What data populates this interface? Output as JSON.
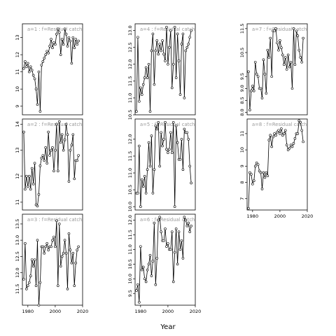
{
  "figure": {
    "xlabel": "Year",
    "line_color": "#000000",
    "title_color": "#999999",
    "background": "#ffffff"
  },
  "chart_data": [
    {
      "type": "line",
      "title": "a=1 : f=Residual catch",
      "x": [
        1977,
        1978,
        1979,
        1980,
        1981,
        1982,
        1983,
        1984,
        1985,
        1986,
        1987,
        1988,
        1989,
        1990,
        1991,
        1992,
        1993,
        1994,
        1995,
        1996,
        1997,
        1998,
        1999,
        2000,
        2001,
        2002,
        2003,
        2004,
        2005,
        2006,
        2007,
        2008,
        2009,
        2010,
        2011,
        2012,
        2013,
        2014,
        2015,
        2016,
        2017
      ],
      "y": [
        11.2,
        11.6,
        11.3,
        11.5,
        11.0,
        11.3,
        11.1,
        10.8,
        10.6,
        10.0,
        9.1,
        11.0,
        8.7,
        11.4,
        11.6,
        11.8,
        12.0,
        12.2,
        12.1,
        12.5,
        12.9,
        12.4,
        12.7,
        12.6,
        13.2,
        13.5,
        13.3,
        12.0,
        12.9,
        12.6,
        13.5,
        13.2,
        12.5,
        13.0,
        12.8,
        11.5,
        13.0,
        12.4,
        12.9,
        12.6,
        12.8
      ],
      "ylim": [
        8.5,
        13.8
      ],
      "yticks": [
        9,
        10,
        11,
        12,
        13
      ],
      "xticks": [
        1980,
        2000,
        2020
      ],
      "show_xticks": false,
      "show_yticks": true
    },
    {
      "type": "line",
      "title": "a=2 : f=Residual catch",
      "x": [
        1977,
        1978,
        1979,
        1980,
        1981,
        1982,
        1983,
        1984,
        1985,
        1986,
        1987,
        1988,
        1989,
        1990,
        1991,
        1992,
        1993,
        1994,
        1995,
        1996,
        1997,
        1998,
        1999,
        2000,
        2001,
        2002,
        2003,
        2004,
        2005,
        2006,
        2007,
        2008,
        2009,
        2010,
        2011,
        2012,
        2013,
        2014,
        2015,
        2016,
        2017
      ],
      "y": [
        13.7,
        11.5,
        12.0,
        11.6,
        12.0,
        11.5,
        12.3,
        11.7,
        12.5,
        10.9,
        10.85,
        11.3,
        12.4,
        12.7,
        12.8,
        12.6,
        13.1,
        12.5,
        13.7,
        12.8,
        13.0,
        13.1,
        12.2,
        13.0,
        14.0,
        12.2,
        14.1,
        13.3,
        13.6,
        13.0,
        13.4,
        14.0,
        13.6,
        11.8,
        13.0,
        13.2,
        13.6,
        11.9,
        12.6,
        12.6,
        12.8
      ],
      "ylim": [
        10.7,
        14.2
      ],
      "yticks": [
        11,
        12,
        13,
        14
      ],
      "xticks": [
        1980,
        2000,
        2020
      ],
      "show_xticks": false,
      "show_yticks": true
    },
    {
      "type": "line",
      "title": "a=3 : f=Residual catch",
      "x": [
        1977,
        1978,
        1979,
        1980,
        1981,
        1982,
        1983,
        1984,
        1985,
        1986,
        1987,
        1988,
        1989,
        1990,
        1991,
        1992,
        1993,
        1994,
        1995,
        1996,
        1997,
        1998,
        1999,
        2000,
        2001,
        2002,
        2003,
        2004,
        2005,
        2006,
        2007,
        2008,
        2009,
        2010,
        2011,
        2012,
        2013,
        2014,
        2015,
        2016,
        2017
      ],
      "y": [
        11.8,
        12.9,
        11.5,
        11.6,
        11.7,
        11.9,
        12.4,
        12.2,
        12.4,
        11.6,
        13.0,
        11.0,
        11.7,
        12.8,
        12.8,
        12.6,
        12.8,
        12.9,
        12.7,
        12.8,
        12.8,
        13.0,
        13.1,
        12.8,
        13.6,
        11.6,
        13.5,
        12.2,
        12.5,
        12.6,
        13.0,
        12.6,
        11.5,
        13.2,
        12.7,
        12.3,
        12.6,
        11.6,
        12.3,
        12.7,
        12.8
      ],
      "ylim": [
        11.0,
        13.8
      ],
      "yticks": [
        11.5,
        12.0,
        12.5,
        13.0,
        13.5
      ],
      "xticks": [
        1980,
        2000,
        2020
      ],
      "show_xticks": true,
      "show_yticks": true
    },
    {
      "type": "line",
      "title": "a=4 : f=Residual catch",
      "x": [
        1977,
        1978,
        1979,
        1980,
        1981,
        1982,
        1983,
        1984,
        1985,
        1986,
        1987,
        1988,
        1989,
        1990,
        1991,
        1992,
        1993,
        1994,
        1995,
        1996,
        1997,
        1998,
        1999,
        2000,
        2001,
        2002,
        2003,
        2004,
        2005,
        2006,
        2007,
        2008,
        2009,
        2010,
        2011,
        2012,
        2013,
        2014,
        2015,
        2016,
        2017
      ],
      "y": [
        10.6,
        12.8,
        10.9,
        11.3,
        11.1,
        11.4,
        11.6,
        11.9,
        11.6,
        12.0,
        10.6,
        12.4,
        12.9,
        11.4,
        12.4,
        12.7,
        12.3,
        12.6,
        12.4,
        12.7,
        12.3,
        12.1,
        13.1,
        12.0,
        12.5,
        13.0,
        11.3,
        12.0,
        13.1,
        11.6,
        12.9,
        12.1,
        11.1,
        12.6,
        12.9,
        11.0,
        12.4,
        12.5,
        12.6,
        12.8,
        13.0
      ],
      "ylim": [
        10.5,
        13.2
      ],
      "yticks": [
        10.5,
        11.0,
        11.5,
        12.0,
        12.5,
        13.0
      ],
      "xticks": [
        1980,
        2000,
        2020
      ],
      "show_xticks": false,
      "show_yticks": true
    },
    {
      "type": "line",
      "title": "a=5 : f=Residual catch",
      "x": [
        1977,
        1978,
        1979,
        1980,
        1981,
        1982,
        1983,
        1984,
        1985,
        1986,
        1987,
        1988,
        1989,
        1990,
        1991,
        1992,
        1993,
        1994,
        1995,
        1996,
        1997,
        1998,
        1999,
        2000,
        2001,
        2002,
        2003,
        2004,
        2005,
        2006,
        2007,
        2008,
        2009,
        2010,
        2011,
        2012,
        2013,
        2014,
        2015,
        2016,
        2017
      ],
      "y": [
        10.4,
        10.4,
        11.8,
        10.0,
        10.8,
        10.6,
        10.9,
        10.4,
        11.1,
        11.9,
        11.2,
        12.1,
        10.4,
        11.1,
        12.4,
        12.3,
        12.5,
        11.2,
        12.2,
        11.8,
        12.0,
        12.5,
        11.7,
        11.6,
        11.7,
        12.2,
        11.6,
        12.5,
        10.0,
        12.4,
        11.9,
        11.4,
        11.4,
        12.0,
        11.1,
        12.3,
        12.2,
        12.2,
        12.0,
        11.2,
        10.7
      ],
      "ylim": [
        9.9,
        12.6
      ],
      "yticks": [
        10.0,
        10.5,
        11.0,
        11.5,
        12.0
      ],
      "xticks": [
        1980,
        2000,
        2020
      ],
      "show_xticks": false,
      "show_yticks": true
    },
    {
      "type": "line",
      "title": "a=6 : f=Residual catch",
      "x": [
        1977,
        1978,
        1979,
        1980,
        1981,
        1982,
        1983,
        1984,
        1985,
        1986,
        1987,
        1988,
        1989,
        1990,
        1991,
        1992,
        1993,
        1994,
        1995,
        1996,
        1997,
        1998,
        1999,
        2000,
        2001,
        2002,
        2003,
        2004,
        2005,
        2006,
        2007,
        2008,
        2009,
        2010,
        2011,
        2012,
        2013,
        2014,
        2015,
        2016,
        2017
      ],
      "y": [
        9.6,
        9.8,
        9.2,
        11.1,
        10.3,
        10.4,
        10.0,
        9.9,
        10.3,
        10.5,
        10.8,
        10.1,
        10.6,
        11.9,
        9.8,
        10.7,
        12.0,
        12.1,
        11.6,
        11.3,
        11.3,
        11.7,
        11.1,
        11.2,
        11.0,
        11.0,
        11.6,
        9.9,
        10.9,
        11.7,
        10.5,
        11.6,
        11.0,
        11.3,
        10.7,
        12.1,
        12.0,
        11.8,
        11.9,
        11.6,
        11.8
      ],
      "ylim": [
        9.1,
        12.2
      ],
      "yticks": [
        9.5,
        10.0,
        10.5,
        11.0,
        11.5,
        12.0
      ],
      "xticks": [
        1980,
        2000,
        2020
      ],
      "show_xticks": true,
      "show_yticks": true
    },
    {
      "type": "line",
      "title": "a=7 : f=Residual catch",
      "x": [
        1977,
        1978,
        1979,
        1980,
        1981,
        1982,
        1983,
        1984,
        1985,
        1986,
        1987,
        1988,
        1989,
        1990,
        1991,
        1992,
        1993,
        1994,
        1995,
        1996,
        1997,
        1998,
        1999,
        2000,
        2001,
        2002,
        2003,
        2004,
        2005,
        2006,
        2007,
        2008,
        2009,
        2010,
        2011,
        2012,
        2013,
        2014,
        2015,
        2016,
        2017
      ],
      "y": [
        9.7,
        8.1,
        8.9,
        9.1,
        8.9,
        10.1,
        9.6,
        9.5,
        9.0,
        9.0,
        8.6,
        10.2,
        9.6,
        8.8,
        10.6,
        10.3,
        11.1,
        9.5,
        11.4,
        11.4,
        11.5,
        10.9,
        10.6,
        11.0,
        10.7,
        10.4,
        10.0,
        10.3,
        9.8,
        10.4,
        9.9,
        10.1,
        9.0,
        11.5,
        10.0,
        11.4,
        11.2,
        10.6,
        10.3,
        10.1,
        11.1
      ],
      "ylim": [
        7.9,
        11.7
      ],
      "yticks": [
        8.0,
        8.5,
        9.0,
        9.5,
        10.5,
        11.5
      ],
      "xticks": [
        1980,
        2000,
        2020
      ],
      "show_xticks": false,
      "show_yticks": true
    },
    {
      "type": "line",
      "title": "a=8 : f=Residual catch",
      "x": [
        1977,
        1978,
        1979,
        1980,
        1981,
        1982,
        1983,
        1984,
        1985,
        1986,
        1987,
        1988,
        1989,
        1990,
        1991,
        1992,
        1993,
        1994,
        1995,
        1996,
        1997,
        1998,
        1999,
        2000,
        2001,
        2002,
        2003,
        2004,
        2005,
        2006,
        2007,
        2008,
        2009,
        2010,
        2011,
        2012,
        2013,
        2014,
        2015,
        2016,
        2017
      ],
      "y": [
        6.4,
        8.6,
        8.5,
        7.9,
        8.1,
        9.0,
        9.2,
        9.1,
        8.7,
        8.6,
        7.6,
        8.6,
        8.3,
        8.6,
        8.4,
        10.6,
        10.9,
        10.2,
        10.8,
        11.0,
        10.9,
        11.1,
        11.2,
        11.0,
        11.3,
        10.9,
        11.0,
        11.2,
        10.3,
        10.0,
        10.1,
        10.3,
        10.2,
        10.4,
        10.7,
        11.0,
        11.0,
        11.8,
        11.7,
        11.2,
        10.5
      ],
      "ylim": [
        6.3,
        11.9
      ],
      "yticks": [
        7,
        8,
        9,
        10,
        11
      ],
      "xticks": [
        1980,
        2000,
        2020
      ],
      "show_xticks": true,
      "show_yticks": true
    }
  ]
}
